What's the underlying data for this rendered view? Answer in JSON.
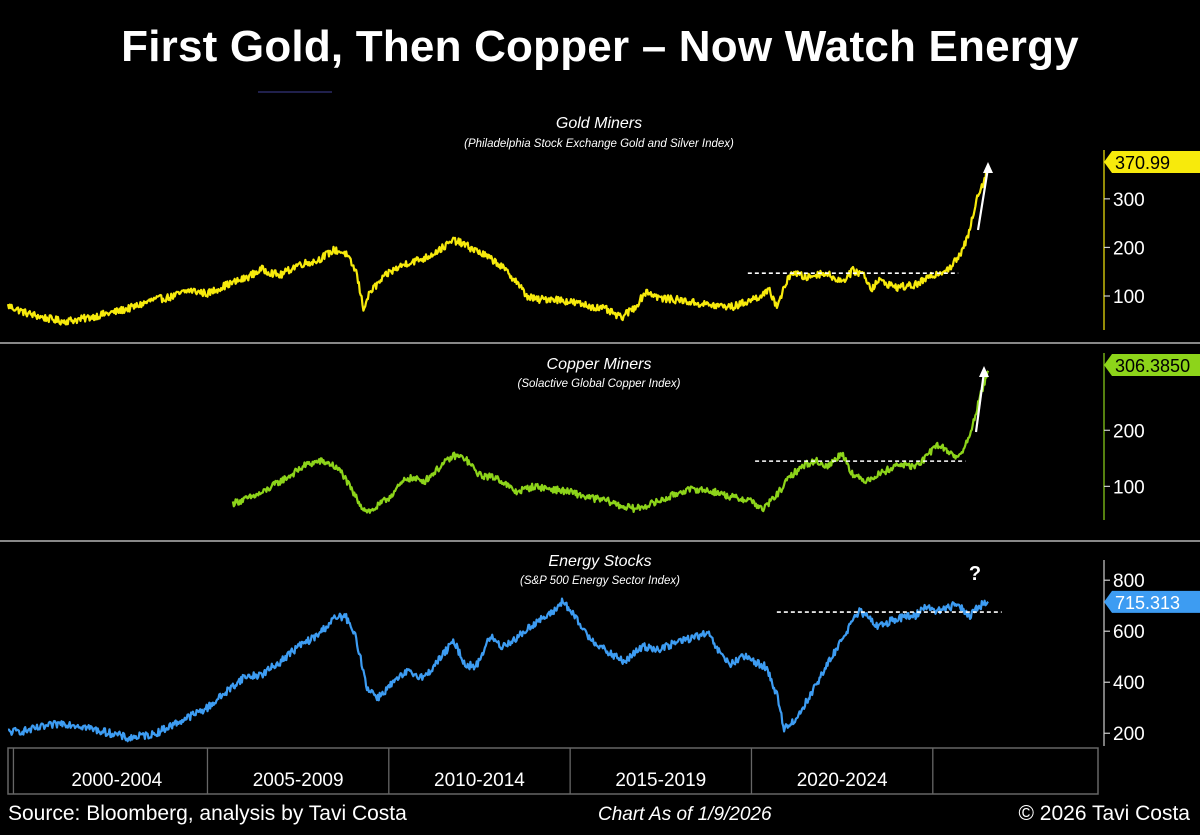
{
  "title": "First Gold, Then Copper – Now Watch Energy",
  "footer": {
    "source": "Source: Bloomberg, analysis by Tavi Costa",
    "date": "Chart As of 1/9/2026",
    "copyright": "© 2026 Tavi Costa"
  },
  "colors": {
    "gold": "#f7ea0c",
    "copper": "#8dd41a",
    "energy": "#3d9cf2",
    "background": "#000000"
  },
  "chart_data": [
    {
      "type": "line",
      "title": "Gold Miners",
      "subtitle": "(Philadelphia Stock Exchange Gold and Silver Index)",
      "last_value_label": "370.99",
      "ylim": [
        30,
        380
      ],
      "yticks": [
        100,
        200,
        300
      ],
      "color": "#f7ea0c",
      "annotation": "arrow-up",
      "resistance_level": 147,
      "resistance_x": [
        2019.4,
        2025.2
      ],
      "series": [
        {
          "x": [
            1999.0,
            1999.5,
            2000.0,
            2000.5,
            2001.0,
            2001.5,
            2002.0,
            2002.5,
            2003.0,
            2003.5,
            2004.0,
            2004.5,
            2005.0,
            2005.5,
            2006.0,
            2006.5,
            2007.0,
            2007.5,
            2008.0,
            2008.3,
            2008.6,
            2008.8,
            2009.0,
            2009.5,
            2010.0,
            2010.5,
            2011.0,
            2011.3,
            2011.6,
            2012.0,
            2012.5,
            2013.0,
            2013.3,
            2013.6,
            2014.0,
            2014.5,
            2015.0,
            2015.5,
            2015.9,
            2016.3,
            2016.6,
            2017.0,
            2017.5,
            2018.0,
            2018.5,
            2019.0,
            2019.5,
            2020.0,
            2020.2,
            2020.6,
            2021.0,
            2021.5,
            2022.0,
            2022.3,
            2022.6,
            2022.8,
            2023.0,
            2023.5,
            2024.0,
            2024.5,
            2025.0,
            2025.3,
            2025.5,
            2025.7,
            2025.9,
            2026.03
          ],
          "y": [
            80,
            65,
            55,
            48,
            52,
            60,
            68,
            78,
            92,
            98,
            112,
            105,
            122,
            135,
            155,
            142,
            165,
            172,
            195,
            188,
            150,
            75,
            110,
            148,
            168,
            178,
            200,
            215,
            205,
            190,
            168,
            132,
            100,
            92,
            95,
            88,
            80,
            72,
            55,
            78,
            110,
            95,
            92,
            85,
            80,
            78,
            92,
            110,
            80,
            150,
            138,
            148,
            130,
            152,
            145,
            115,
            132,
            118,
            122,
            142,
            160,
            190,
            230,
            300,
            335,
            371
          ]
        }
      ]
    },
    {
      "type": "line",
      "title": "Copper Miners",
      "subtitle": "(Solactive Global Copper Index)",
      "last_value_label": "306.3850",
      "ylim": [
        40,
        320
      ],
      "yticks": [
        100,
        200
      ],
      "color": "#8dd41a",
      "annotation": "arrow-up",
      "resistance_level": 145,
      "resistance_x": [
        2019.6,
        2025.4
      ],
      "series": [
        {
          "x": [
            2005.2,
            2005.6,
            2006.0,
            2006.4,
            2006.8,
            2007.2,
            2007.6,
            2007.9,
            2008.2,
            2008.5,
            2008.8,
            2009.0,
            2009.5,
            2010.0,
            2010.5,
            2011.0,
            2011.3,
            2011.6,
            2012.0,
            2012.5,
            2013.0,
            2013.5,
            2014.0,
            2014.5,
            2015.0,
            2015.5,
            2015.9,
            2016.3,
            2016.8,
            2017.2,
            2017.6,
            2018.0,
            2018.5,
            2019.0,
            2019.5,
            2019.8,
            2020.2,
            2020.6,
            2021.0,
            2021.3,
            2021.6,
            2022.0,
            2022.3,
            2022.6,
            2022.9,
            2023.2,
            2023.6,
            2024.0,
            2024.3,
            2024.6,
            2025.0,
            2025.2,
            2025.5,
            2025.8,
            2026.03
          ],
          "y": [
            70,
            78,
            88,
            105,
            120,
            138,
            145,
            140,
            125,
            90,
            60,
            55,
            80,
            115,
            110,
            140,
            155,
            150,
            120,
            115,
            90,
            100,
            95,
            90,
            80,
            75,
            65,
            60,
            70,
            80,
            92,
            95,
            90,
            80,
            75,
            58,
            85,
            120,
            140,
            145,
            135,
            160,
            120,
            110,
            118,
            128,
            140,
            135,
            150,
            175,
            160,
            150,
            185,
            260,
            306
          ]
        }
      ]
    },
    {
      "type": "line",
      "title": "Energy Stocks",
      "subtitle": "(S&P 500 Energy Sector Index)",
      "last_value_label": "715.313",
      "ylim": [
        150,
        840
      ],
      "yticks": [
        200,
        400,
        600,
        800
      ],
      "color": "#3d9cf2",
      "annotation": "?",
      "resistance_level": 675,
      "resistance_x": [
        2020.2,
        2026.4
      ],
      "series": [
        {
          "x": [
            1999.0,
            1999.5,
            2000.0,
            2000.5,
            2001.0,
            2001.5,
            2002.0,
            2002.3,
            2002.7,
            2003.0,
            2003.5,
            2004.0,
            2004.5,
            2005.0,
            2005.5,
            2006.0,
            2006.5,
            2007.0,
            2007.5,
            2008.0,
            2008.3,
            2008.6,
            2008.9,
            2009.2,
            2009.6,
            2010.0,
            2010.5,
            2011.0,
            2011.3,
            2011.6,
            2011.9,
            2012.3,
            2012.6,
            2013.0,
            2013.5,
            2014.0,
            2014.3,
            2014.6,
            2015.0,
            2015.5,
            2016.0,
            2016.5,
            2017.0,
            2017.5,
            2018.0,
            2018.3,
            2018.6,
            2018.9,
            2019.3,
            2019.6,
            2019.9,
            2020.2,
            2020.4,
            2020.7,
            2021.0,
            2021.4,
            2021.8,
            2022.2,
            2022.5,
            2022.8,
            2023.0,
            2023.5,
            2024.0,
            2024.3,
            2024.6,
            2024.9,
            2025.2,
            2025.5,
            2025.8,
            2026.03
          ],
          "y": [
            205,
            210,
            225,
            240,
            230,
            210,
            195,
            180,
            190,
            195,
            230,
            265,
            300,
            360,
            420,
            430,
            480,
            540,
            580,
            650,
            660,
            570,
            380,
            340,
            395,
            440,
            420,
            510,
            560,
            470,
            460,
            580,
            540,
            570,
            630,
            670,
            720,
            660,
            580,
            520,
            480,
            540,
            530,
            560,
            580,
            590,
            520,
            470,
            500,
            480,
            460,
            350,
            220,
            250,
            320,
            420,
            520,
            620,
            680,
            640,
            620,
            650,
            660,
            700,
            680,
            690,
            710,
            660,
            700,
            715
          ]
        }
      ]
    }
  ],
  "x_axis": {
    "labels": [
      "2000-2004",
      "2005-2009",
      "2010-2014",
      "2015-2019",
      "2020-2024"
    ],
    "range": [
      1999.0,
      2029.0
    ]
  }
}
